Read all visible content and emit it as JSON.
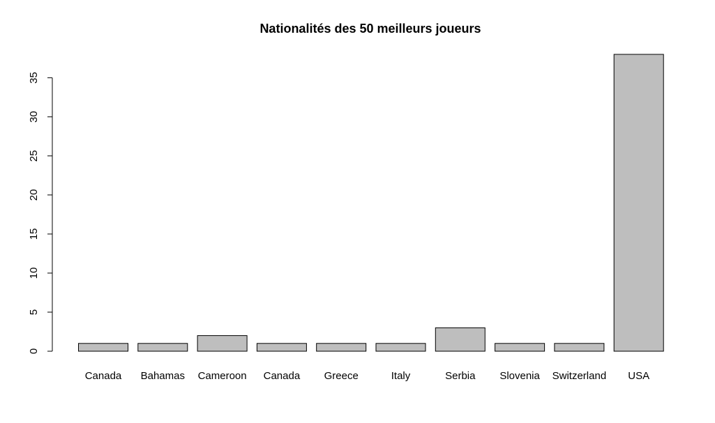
{
  "chart_data": {
    "type": "bar",
    "title": "Nationalités des 50 meilleurs joueurs",
    "xlabel": "",
    "ylabel": "",
    "categories": [
      "Canada",
      "Bahamas",
      "Cameroon",
      "Canada",
      "Greece",
      "Italy",
      "Serbia",
      "Slovenia",
      "Switzerland",
      "USA"
    ],
    "values": [
      1,
      1,
      2,
      1,
      1,
      1,
      3,
      1,
      1,
      38
    ],
    "ylim": [
      0,
      38
    ],
    "yticks": [
      0,
      5,
      10,
      15,
      20,
      25,
      30,
      35
    ],
    "grid": false,
    "legend": "none",
    "colors": {
      "bar_fill": "#bebebe",
      "bar_stroke": "#000000",
      "axis": "#000000",
      "text": "#000000"
    }
  }
}
